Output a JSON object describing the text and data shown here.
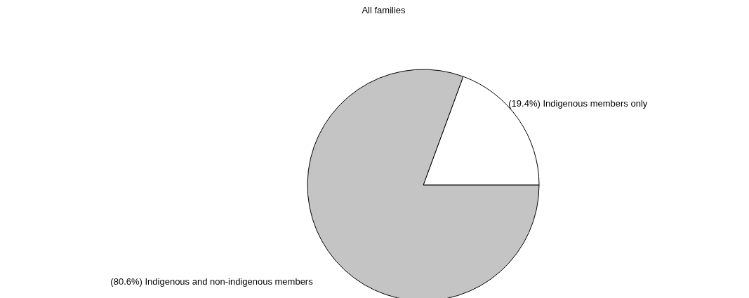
{
  "chart_data": {
    "type": "pie",
    "title": "All families",
    "categories": [
      "Indigenous members only",
      "Indigenous and non-indigenous members"
    ],
    "values": [
      19.4,
      80.6
    ],
    "value_labels": [
      "(19.4%)",
      "(80.6%)"
    ],
    "colors": [
      "#ffffff",
      "#c4c4c4"
    ],
    "legend": false
  }
}
